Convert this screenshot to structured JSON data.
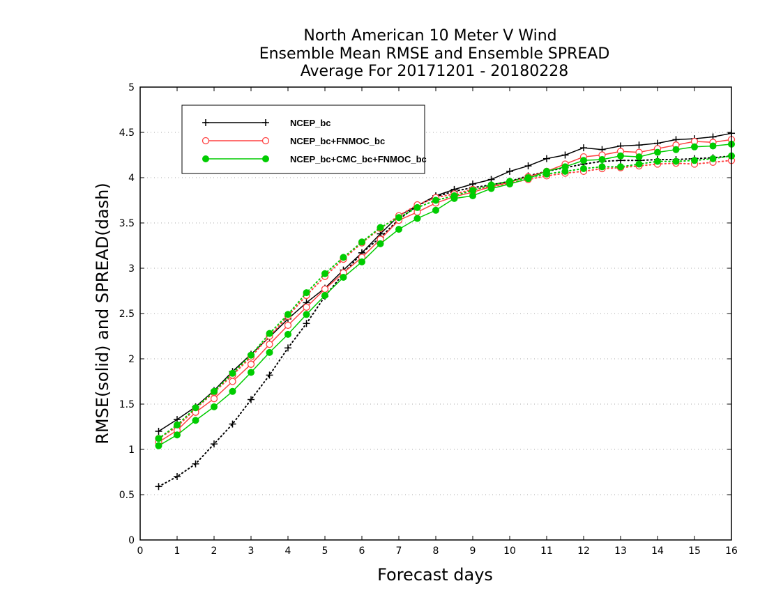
{
  "chart_data": {
    "type": "line",
    "title": [
      "North American 10 Meter V Wind",
      "Ensemble Mean RMSE and Ensemble SPREAD",
      "Average For 20171201 - 20180228"
    ],
    "xlabel": "Forecast days",
    "ylabel": "RMSE(solid) and SPREAD(dash)",
    "xlim": [
      0,
      16
    ],
    "ylim": [
      0,
      5
    ],
    "xticks": [
      "0",
      "1",
      "2",
      "3",
      "4",
      "5",
      "6",
      "7",
      "8",
      "9",
      "10",
      "11",
      "12",
      "13",
      "14",
      "15",
      "16"
    ],
    "yticks": [
      "0",
      "0.5",
      "1",
      "1.5",
      "2",
      "2.5",
      "3",
      "3.5",
      "4",
      "4.5",
      "5"
    ],
    "grid": "dotted horizontal",
    "legend_position": "top-left",
    "x": [
      0.5,
      1,
      1.5,
      2,
      2.5,
      3,
      3.5,
      4,
      4.5,
      5,
      5.5,
      6,
      6.5,
      7,
      7.5,
      8,
      8.5,
      9,
      9.5,
      10,
      10.5,
      11,
      11.5,
      12,
      12.5,
      13,
      13.5,
      14,
      14.5,
      15,
      15.5,
      16
    ],
    "series": [
      {
        "name": "NCEP_bc",
        "color": "#000000",
        "marker": "plus",
        "rmse": [
          1.2,
          1.33,
          1.47,
          1.65,
          1.86,
          2.05,
          2.24,
          2.44,
          2.62,
          2.78,
          2.98,
          3.17,
          3.38,
          3.58,
          3.69,
          3.8,
          3.87,
          3.93,
          3.98,
          4.07,
          4.13,
          4.21,
          4.25,
          4.33,
          4.31,
          4.35,
          4.36,
          4.38,
          4.42,
          4.43,
          4.45,
          4.49
        ],
        "spread": [
          0.59,
          0.7,
          0.84,
          1.06,
          1.28,
          1.55,
          1.82,
          2.12,
          2.39,
          2.69,
          2.94,
          3.17,
          3.34,
          3.54,
          3.69,
          3.79,
          3.85,
          3.89,
          3.92,
          3.96,
          4.02,
          4.07,
          4.11,
          4.15,
          4.18,
          4.19,
          4.19,
          4.2,
          4.2,
          4.21,
          4.22,
          4.24
        ]
      },
      {
        "name": "NCEP_bc+FNMOC_bc",
        "color": "#ff4040",
        "marker": "open-circle",
        "rmse": [
          1.08,
          1.21,
          1.41,
          1.56,
          1.75,
          1.94,
          2.16,
          2.37,
          2.57,
          2.77,
          2.95,
          3.12,
          3.32,
          3.53,
          3.62,
          3.72,
          3.79,
          3.84,
          3.9,
          3.95,
          4.01,
          4.07,
          4.15,
          4.23,
          4.25,
          4.29,
          4.28,
          4.32,
          4.36,
          4.4,
          4.39,
          4.42
        ],
        "spread": [
          1.12,
          1.25,
          1.45,
          1.63,
          1.82,
          2.02,
          2.25,
          2.47,
          2.7,
          2.91,
          3.1,
          3.28,
          3.44,
          3.58,
          3.7,
          3.78,
          3.82,
          3.87,
          3.9,
          3.94,
          3.98,
          4.02,
          4.05,
          4.07,
          4.1,
          4.11,
          4.13,
          4.15,
          4.16,
          4.15,
          4.17,
          4.19
        ]
      },
      {
        "name": "NCEP_bc+CMC_bc+FNMOC_bc",
        "color": "#00cc00",
        "marker": "filled-circle",
        "rmse": [
          1.04,
          1.16,
          1.32,
          1.47,
          1.64,
          1.85,
          2.07,
          2.27,
          2.49,
          2.7,
          2.9,
          3.07,
          3.27,
          3.43,
          3.55,
          3.64,
          3.77,
          3.8,
          3.88,
          3.93,
          3.99,
          4.07,
          4.12,
          4.19,
          4.2,
          4.24,
          4.23,
          4.28,
          4.31,
          4.34,
          4.35,
          4.37
        ],
        "spread": [
          1.12,
          1.27,
          1.46,
          1.64,
          1.84,
          2.04,
          2.28,
          2.49,
          2.73,
          2.94,
          3.12,
          3.29,
          3.45,
          3.56,
          3.67,
          3.75,
          3.8,
          3.86,
          3.92,
          3.96,
          4.0,
          4.04,
          4.07,
          4.1,
          4.12,
          4.12,
          4.15,
          4.18,
          4.18,
          4.19,
          4.21,
          4.24
        ]
      }
    ]
  }
}
